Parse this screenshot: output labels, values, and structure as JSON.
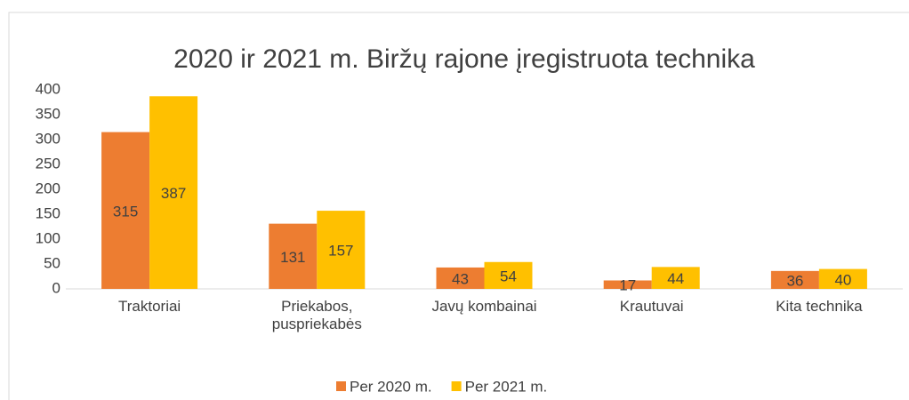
{
  "chart_data": {
    "type": "bar",
    "title": "2020 ir 2021 m. Biržų rajone įregistruota technika",
    "categories": [
      "Traktoriai",
      "Priekabos, puspriekabės",
      "Javų kombainai",
      "Krautuvai",
      "Kita technika"
    ],
    "series": [
      {
        "name": "Per 2020 m.",
        "color": "#ed7d31",
        "values": [
          315,
          131,
          43,
          17,
          36
        ]
      },
      {
        "name": "Per 2021 m.",
        "color": "#ffc000",
        "values": [
          387,
          157,
          54,
          44,
          40
        ]
      }
    ],
    "ylim": [
      0,
      400
    ],
    "yticks": [
      0,
      50,
      100,
      150,
      200,
      250,
      300,
      350,
      400
    ],
    "legend": "bottom"
  }
}
